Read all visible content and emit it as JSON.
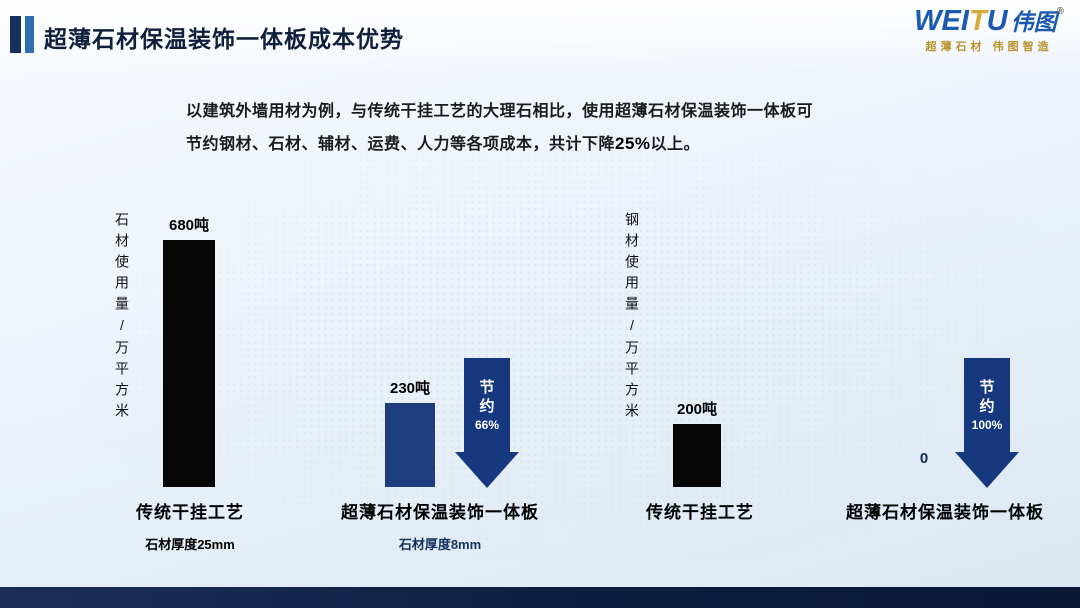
{
  "header": {
    "title": "超薄石材保温装饰一体板成本优势",
    "logo": {
      "brand_en_1": "WEI",
      "brand_en_2": "T",
      "brand_en_3": "U",
      "brand_cn": "伟图",
      "reg_mark": "®",
      "tagline": "超薄石材 伟图智造"
    }
  },
  "intro": {
    "line1": "以建筑外墙用材为例，与传统干挂工艺的大理石相比，使用超薄石材保温装饰一体板可",
    "line2_before": "节约钢材、石材、辅材、运费、人力等各项成本，共计下降",
    "line2_bold": "25%",
    "line2_after": "以上。"
  },
  "chart_data": [
    {
      "type": "bar",
      "ylabel": "石材使用量/万平方米",
      "categories": [
        "传统干挂工艺",
        "超薄石材保温装饰一体板"
      ],
      "values": [
        680,
        230
      ],
      "unit": "吨",
      "value_labels": [
        "680吨",
        "230吨"
      ],
      "sub_labels": [
        "石材厚度25mm",
        "石材厚度8mm"
      ],
      "arrow": {
        "label": "节约",
        "value": "66%"
      },
      "bar_colors": [
        "#060606",
        "#1d3d7c"
      ],
      "ylim": [
        0,
        700
      ],
      "legend": "none",
      "grid": false
    },
    {
      "type": "bar",
      "ylabel": "钢材使用量/万平方米",
      "categories": [
        "传统干挂工艺",
        "超薄石材保温装饰一体板"
      ],
      "values": [
        200,
        0
      ],
      "unit": "吨",
      "value_labels": [
        "200吨",
        "0"
      ],
      "arrow": {
        "label": "节约",
        "value": "100%"
      },
      "bar_colors": [
        "#060606",
        "#1d3d7c"
      ],
      "ylim": [
        0,
        700
      ],
      "legend": "none",
      "grid": false
    }
  ],
  "colors": {
    "accent_dark": "#14305c",
    "accent_blue": "#2f6db5",
    "bar_black": "#060606",
    "bar_navy": "#1d3d7c",
    "arrow_blue": "#16387f",
    "footer_navy": "#0d1e40",
    "logo_blue": "#1b5ab0",
    "logo_gold": "#b8922f"
  }
}
